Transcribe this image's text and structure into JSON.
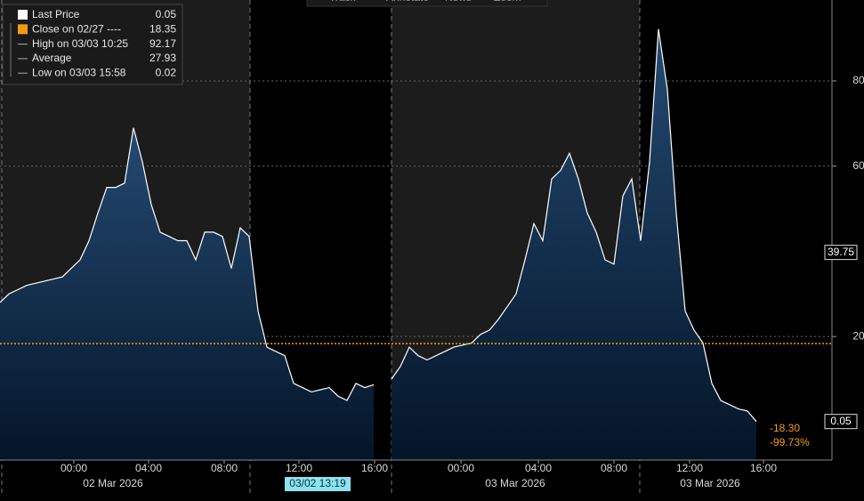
{
  "chart_data": {
    "type": "area",
    "toolbar": [
      "Track",
      "Annotate",
      "News",
      "Zoom"
    ],
    "legend": [
      {
        "name": "Last Price",
        "value": "0.05",
        "color": "#ffffff"
      },
      {
        "name": "Close on 02/27 ----",
        "value": "18.35",
        "color": "#f39c12"
      },
      {
        "name": "High on 03/03 10:25",
        "value": "92.17",
        "color": "#aaaaaa"
      },
      {
        "name": "Average",
        "value": "27.93",
        "color": "#aaaaaa"
      },
      {
        "name": "Low on 03/03 15:58",
        "value": "0.02",
        "color": "#aaaaaa"
      }
    ],
    "series": [
      {
        "name": "Last Price",
        "color": "#ffffff",
        "values": [
          28,
          30,
          31,
          32,
          32.5,
          33,
          33.5,
          34,
          36,
          38,
          42.5,
          49,
          55,
          55,
          56,
          69,
          61,
          51,
          44.5,
          43.5,
          42.5,
          42.5,
          38,
          44.5,
          44.5,
          43.5,
          36,
          45.5,
          43.5,
          26,
          17.5,
          16.5,
          15.5,
          9,
          8,
          7,
          7.5,
          8,
          6,
          5,
          9,
          8,
          8.7,
          null,
          10,
          13,
          17.5,
          15.5,
          14.5,
          15.5,
          16.5,
          17.5,
          18,
          18.5,
          20.5,
          21.5,
          24,
          27,
          30,
          38,
          46.5,
          42.5,
          57,
          59,
          63,
          57,
          49,
          44.5,
          38,
          37,
          53,
          57,
          42.5,
          61,
          92.17,
          78,
          49,
          26,
          21.5,
          18.5,
          9,
          5,
          4,
          3,
          2.5,
          0.05
        ]
      }
    ],
    "close": 18.35,
    "close_color": "#f39c12",
    "crosshair": {
      "value": 39.75,
      "label": "39.75"
    },
    "last_tag": {
      "value": 0.05,
      "label": "0.05"
    },
    "change": [
      "-18.30",
      "-99.73%"
    ],
    "cursor_label": {
      "value": 27.8,
      "label": "03/02 13:19"
    },
    "xlim": [
      0,
      93.5
    ],
    "ylim": [
      -9,
      99
    ],
    "yticks": [
      20,
      60,
      80
    ],
    "grid": true,
    "xticks": [
      {
        "value": 8.3,
        "label": "00:00"
      },
      {
        "value": 16.7,
        "label": "04:00"
      },
      {
        "value": 25.2,
        "label": "08:00"
      },
      {
        "value": 33.6,
        "label": "12:00"
      },
      {
        "value": 42.1,
        "label": "16:00"
      },
      {
        "value": 51.8,
        "label": "00:00"
      },
      {
        "value": 60.5,
        "label": "04:00"
      },
      {
        "value": 69,
        "label": "08:00"
      },
      {
        "value": 77.5,
        "label": "12:00"
      },
      {
        "value": 85.8,
        "label": "16:00"
      }
    ],
    "date_labels": [
      {
        "value": 12.7,
        "label": "02 Mar 2026"
      },
      {
        "value": 57.9,
        "label": "03 Mar 2026"
      },
      {
        "value": 79.8,
        "label": "03 Mar 2026"
      }
    ]
  }
}
